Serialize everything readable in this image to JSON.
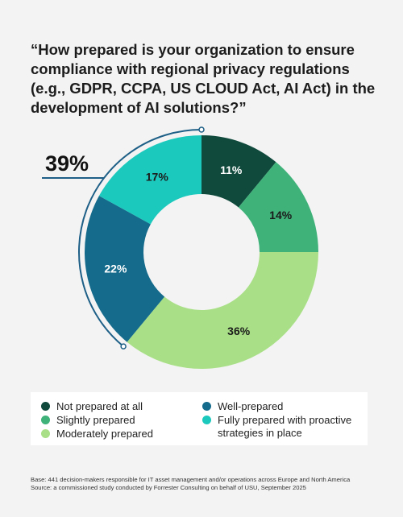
{
  "question": "“How prepared is your organization to ensure compliance with regional privacy regulations (e.g., GDPR, CCPA, US CLOUD Act, AI Act) in the development of AI solutions?”",
  "chart_data": {
    "type": "pie",
    "donut": true,
    "categories": [
      "Not prepared at all",
      "Slightly prepared",
      "Moderately prepared",
      "Well-prepared",
      "Fully prepared with proactive strategies in place"
    ],
    "values": [
      11,
      14,
      36,
      22,
      17
    ],
    "labels": [
      "11%",
      "14%",
      "36%",
      "22%",
      "17%"
    ],
    "colors": [
      "#0f4a3c",
      "#3fb27a",
      "#a9e087",
      "#146b8c",
      "#1cc9bd"
    ],
    "label_colors": [
      "#ffffff",
      "#1b1b1b",
      "#1b1b1b",
      "#ffffff",
      "#1b1b1b"
    ],
    "callout": {
      "label": "39%",
      "covers": [
        "Well-prepared",
        "Fully prepared with proactive strategies in place"
      ],
      "color": "#1d5f86"
    },
    "legend_position": "bottom"
  },
  "legend": {
    "items": [
      {
        "label": "Not prepared at all",
        "color": "#0f4a3c"
      },
      {
        "label": "Slightly prepared",
        "color": "#3fb27a"
      },
      {
        "label": "Moderately prepared",
        "color": "#a9e087"
      },
      {
        "label": "Well-prepared",
        "color": "#146b8c"
      },
      {
        "label": "Fully prepared with proactive strategies in place",
        "color": "#1cc9bd"
      }
    ]
  },
  "footnotes": {
    "base": "Base: 441 decision-makers responsible for IT asset management and/or operations across Europe and North America",
    "source": "Source: a commissioned study conducted by Forrester Consulting on behalf of USU, September 2025"
  }
}
